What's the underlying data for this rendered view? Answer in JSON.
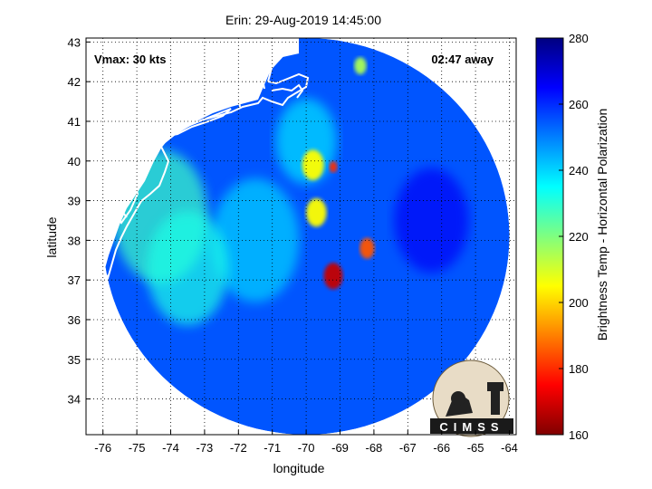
{
  "figure": {
    "title": "Erin: 29-Aug-2019 14:45:00",
    "vmax_text": "Vmax: 30 kts",
    "time_away_text": "02:47 away",
    "logo_text": "CIMSS"
  },
  "chart_data": {
    "type": "heatmap",
    "title": "Erin: 29-Aug-2019 14:45:00",
    "xlabel": "longitude",
    "ylabel": "latitude",
    "xlim": [
      -76.5,
      -63.8
    ],
    "ylim": [
      33.1,
      43.1
    ],
    "xticks": [
      -76,
      -75,
      -74,
      -73,
      -72,
      -71,
      -70,
      -69,
      -68,
      -67,
      -66,
      -65,
      -64
    ],
    "yticks": [
      34,
      35,
      36,
      37,
      38,
      39,
      40,
      41,
      42,
      43
    ],
    "grid": true,
    "colorbar": {
      "label": "Brightness Temp - Horizontal Polarization",
      "range": [
        160,
        280
      ],
      "ticks": [
        160,
        180,
        200,
        220,
        240,
        260,
        280
      ],
      "colormap": "jet"
    },
    "swath": {
      "center_lon": -70.0,
      "center_lat": 38.1,
      "radius_lon": 6.0,
      "radius_lat": 5.0
    },
    "background_tb": 255,
    "features": [
      {
        "lon": -69.2,
        "lat": 37.1,
        "tb": 168,
        "r": 0.28
      },
      {
        "lon": -68.2,
        "lat": 37.8,
        "tb": 185,
        "r": 0.22
      },
      {
        "lon": -69.7,
        "lat": 38.7,
        "tb": 205,
        "r": 0.3
      },
      {
        "lon": -69.8,
        "lat": 39.9,
        "tb": 205,
        "r": 0.32
      },
      {
        "lon": -69.2,
        "lat": 39.85,
        "tb": 180,
        "r": 0.12
      },
      {
        "lon": -68.4,
        "lat": 42.4,
        "tb": 215,
        "r": 0.18
      },
      {
        "lon": -74.3,
        "lat": 38.6,
        "tb": 228,
        "r": 1.4
      },
      {
        "lon": -73.5,
        "lat": 37.3,
        "tb": 232,
        "r": 1.2
      },
      {
        "lon": -71.5,
        "lat": 38.0,
        "tb": 240,
        "r": 1.3
      },
      {
        "lon": -70.0,
        "lat": 40.5,
        "tb": 238,
        "r": 0.9
      },
      {
        "lon": -66.3,
        "lat": 38.5,
        "tb": 266,
        "r": 1.1
      }
    ]
  },
  "colors": {
    "coast": "#ffffff",
    "land": "#ffffff",
    "grid": "#000000"
  }
}
